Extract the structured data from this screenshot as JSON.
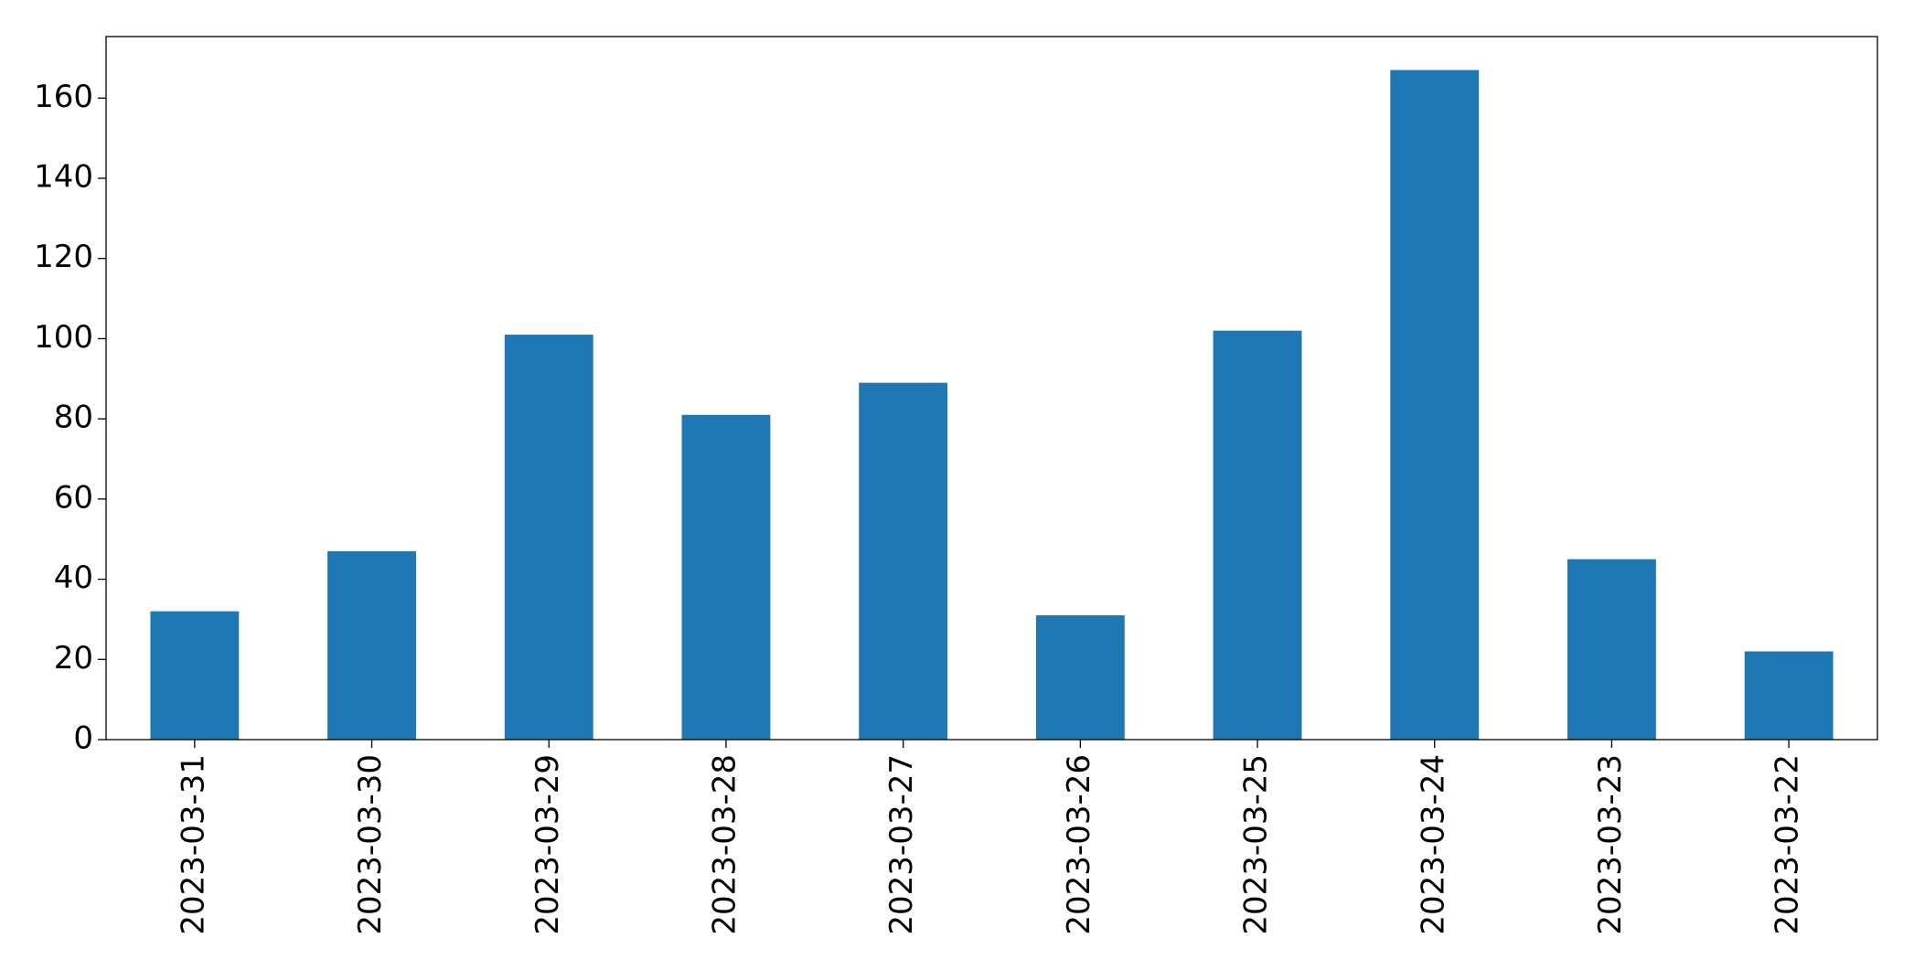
{
  "chart_data": {
    "type": "bar",
    "categories": [
      "2023-03-31",
      "2023-03-30",
      "2023-03-29",
      "2023-03-28",
      "2023-03-27",
      "2023-03-26",
      "2023-03-25",
      "2023-03-24",
      "2023-03-23",
      "2023-03-22"
    ],
    "values": [
      32,
      47,
      101,
      81,
      89,
      31,
      102,
      167,
      45,
      22
    ],
    "color": "#1f77b4",
    "ylim": [
      0,
      175.35
    ],
    "yticks": [
      0,
      20,
      40,
      60,
      80,
      100,
      120,
      140,
      160
    ],
    "grid": false
  }
}
